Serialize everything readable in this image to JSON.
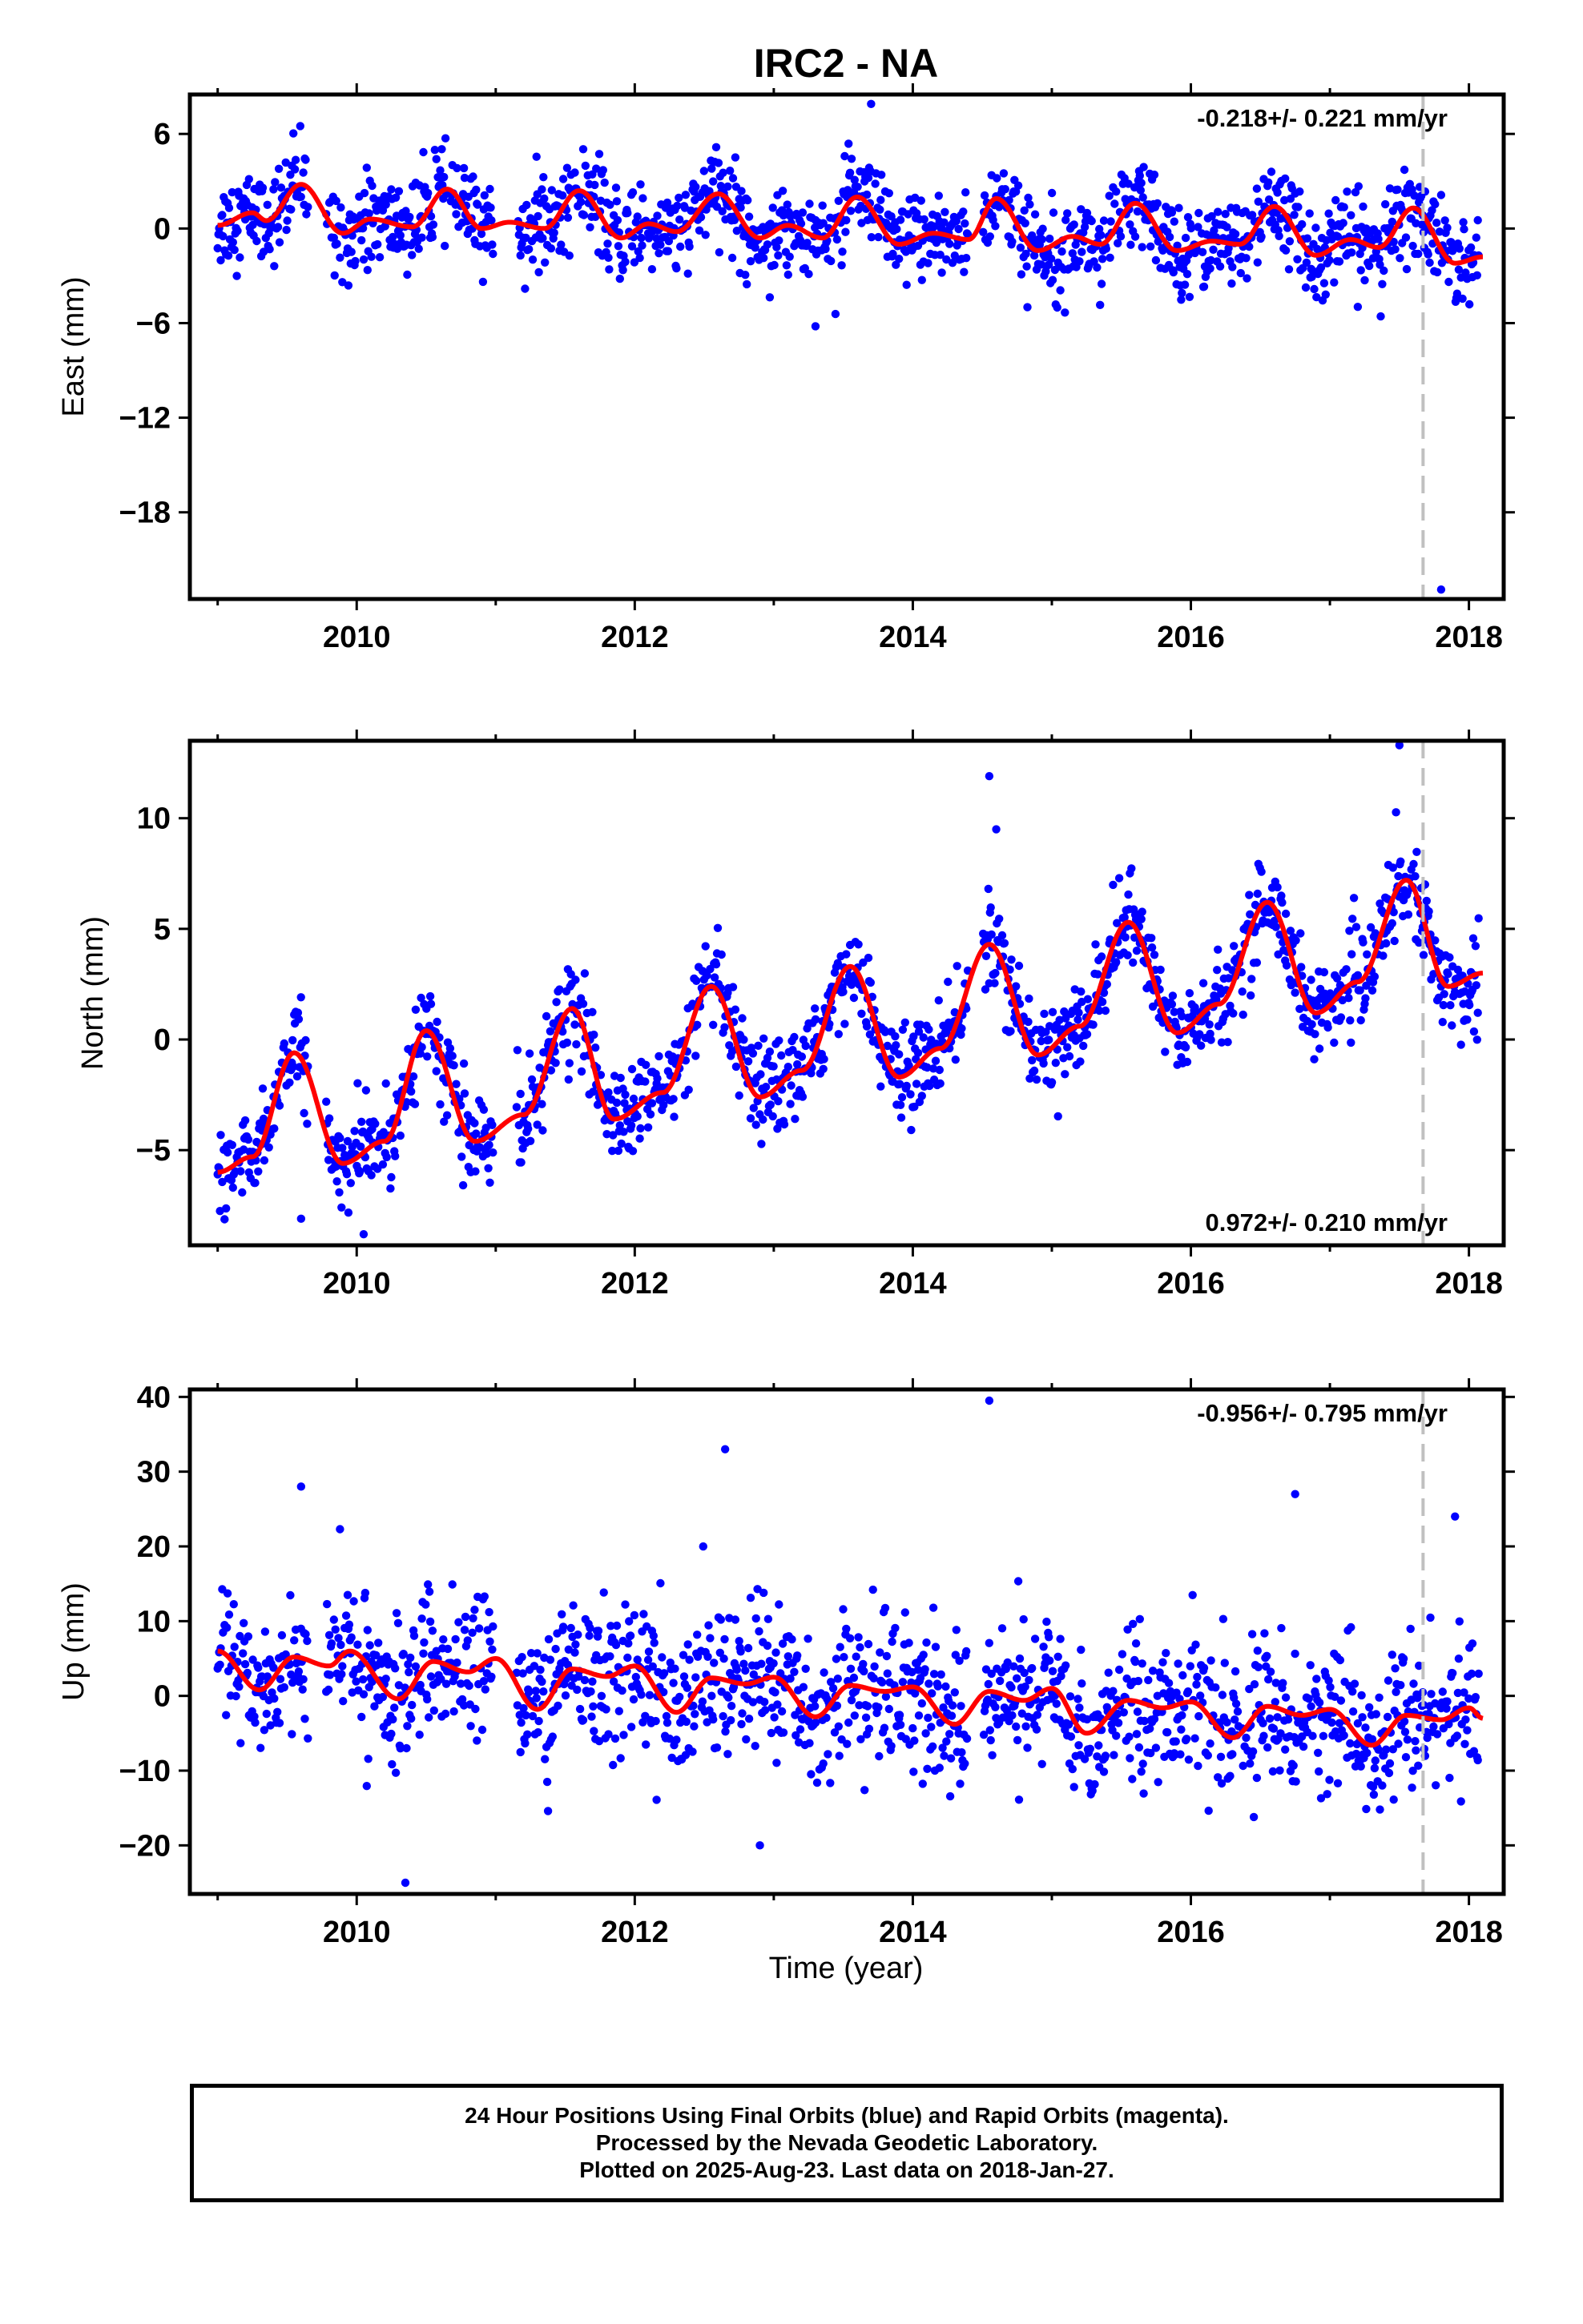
{
  "chart_data": {
    "title": "IRC2 - NA",
    "type": "scatter",
    "xlabel": "Time (year)",
    "xlim": [
      2008.8,
      2018.25
    ],
    "xticks": [
      2010,
      2012,
      2014,
      2016,
      2018
    ],
    "vline_x": 2017.67,
    "colors": {
      "points": "#0000ff",
      "fit": "#ff0000",
      "vline": "#c0c0c0"
    },
    "panels": [
      {
        "id": "east",
        "ylabel": "East (mm)",
        "ylim": [
          -23.5,
          8.5
        ],
        "yticks": [
          6,
          0,
          -6,
          -12,
          -18
        ],
        "rate_text": "-0.218+/- 0.221 mm/yr",
        "rate_position": "top-right",
        "trend": {
          "rate": -0.218,
          "offset": 0.5
        },
        "fit_curve": {
          "x": [
            2009.0,
            2009.25,
            2009.35,
            2009.6,
            2009.9,
            2010.1,
            2010.4,
            2010.65,
            2010.9,
            2011.1,
            2011.35,
            2011.6,
            2011.9,
            2012.1,
            2012.3,
            2012.6,
            2012.9,
            2013.1,
            2013.35,
            2013.6,
            2013.9,
            2014.15,
            2014.4,
            2014.6,
            2014.9,
            2015.15,
            2015.35,
            2015.6,
            2015.9,
            2016.15,
            2016.35,
            2016.6,
            2016.9,
            2017.15,
            2017.35,
            2017.6,
            2017.9,
            2018.1
          ],
          "y": [
            0.2,
            1.0,
            0.5,
            2.8,
            -0.3,
            0.6,
            0.1,
            2.5,
            0.0,
            0.4,
            0.0,
            2.4,
            -0.6,
            0.3,
            -0.2,
            2.2,
            -0.6,
            0.2,
            -0.6,
            2.0,
            -1.0,
            -0.3,
            -0.7,
            1.9,
            -1.4,
            -0.5,
            -1.0,
            1.6,
            -1.4,
            -0.8,
            -1.0,
            1.4,
            -1.7,
            -0.7,
            -1.2,
            1.3,
            -2.2,
            -1.8
          ]
        },
        "outliers": [
          [
            2013.3,
            -6.2
          ],
          [
            2017.8,
            -22.9
          ],
          [
            2013.7,
            7.9
          ]
        ]
      },
      {
        "id": "north",
        "ylabel": "North (mm)",
        "ylim": [
          -9.3,
          13.5
        ],
        "yticks": [
          10,
          5,
          0,
          -5
        ],
        "rate_text": "0.972+/- 0.210 mm/yr",
        "rate_position": "bottom-right",
        "trend": {
          "rate": 0.972,
          "offset": -5.0
        },
        "fit_curve": {
          "x": [
            2009.0,
            2009.25,
            2009.55,
            2009.9,
            2010.2,
            2010.5,
            2010.85,
            2011.2,
            2011.55,
            2011.85,
            2012.2,
            2012.55,
            2012.9,
            2013.2,
            2013.55,
            2013.9,
            2014.2,
            2014.55,
            2014.9,
            2015.2,
            2015.55,
            2015.9,
            2016.2,
            2016.55,
            2016.9,
            2017.2,
            2017.55,
            2017.85,
            2018.1
          ],
          "y": [
            -6.0,
            -5.3,
            -0.6,
            -5.6,
            -4.6,
            0.4,
            -4.6,
            -3.4,
            1.4,
            -3.6,
            -2.4,
            2.4,
            -2.6,
            -1.4,
            3.3,
            -1.7,
            -0.4,
            4.3,
            -0.7,
            0.6,
            5.3,
            0.3,
            1.6,
            6.2,
            1.2,
            2.6,
            7.2,
            2.4,
            3.0
          ]
        },
        "outliers": [
          [
            2014.55,
            11.9
          ],
          [
            2017.5,
            13.3
          ],
          [
            2009.6,
            -8.1
          ],
          [
            2010.05,
            -8.8
          ],
          [
            2014.6,
            9.5
          ]
        ]
      },
      {
        "id": "up",
        "ylabel": "Up (mm)",
        "ylim": [
          -26.5,
          41
        ],
        "yticks": [
          40,
          30,
          20,
          10,
          0,
          -10,
          -20
        ],
        "rate_text": "-0.956+/- 0.795 mm/yr",
        "rate_position": "top-right",
        "trend": {
          "rate": -0.956,
          "offset": 4.0
        },
        "fit_curve": {
          "x": [
            2009.0,
            2009.3,
            2009.55,
            2009.8,
            2009.95,
            2010.3,
            2010.55,
            2010.8,
            2011.0,
            2011.3,
            2011.55,
            2011.8,
            2012.0,
            2012.3,
            2012.55,
            2012.8,
            2013.0,
            2013.3,
            2013.55,
            2013.8,
            2014.0,
            2014.3,
            2014.55,
            2014.8,
            2015.0,
            2015.25,
            2015.55,
            2015.8,
            2016.0,
            2016.3,
            2016.55,
            2016.8,
            2017.0,
            2017.3,
            2017.55,
            2017.8,
            2018.0,
            2018.1
          ],
          "y": [
            6.0,
            0.8,
            5.2,
            4.0,
            6.0,
            -0.4,
            4.6,
            3.2,
            5.0,
            -1.8,
            3.6,
            2.6,
            4.0,
            -2.2,
            2.4,
            1.6,
            2.5,
            -2.8,
            1.4,
            0.6,
            1.2,
            -3.8,
            0.6,
            -0.6,
            1.0,
            -5.0,
            -0.6,
            -1.6,
            -0.8,
            -5.6,
            -1.4,
            -2.6,
            -1.8,
            -6.6,
            -2.6,
            -3.2,
            -1.6,
            -3.0
          ]
        },
        "outliers": [
          [
            2014.55,
            39.5
          ],
          [
            2012.65,
            33.0
          ],
          [
            2010.35,
            -25.0
          ],
          [
            2012.9,
            -20.0
          ],
          [
            2016.75,
            27.0
          ],
          [
            2017.9,
            24.0
          ],
          [
            2009.6,
            28.0
          ]
        ]
      }
    ],
    "point_scatter_sd": {
      "east": 1.4,
      "north": 1.0,
      "up": 4.8
    },
    "data_gaps": [
      [
        2009.65,
        2009.78
      ],
      [
        2010.98,
        2011.15
      ],
      [
        2014.4,
        2014.5
      ]
    ]
  },
  "footer": {
    "line1": "24 Hour Positions Using Final Orbits (blue) and Rapid Orbits (magenta).",
    "line2": "Processed by the Nevada Geodetic Laboratory.",
    "line3": "Plotted on 2025-Aug-23. Last data on 2018-Jan-27."
  }
}
